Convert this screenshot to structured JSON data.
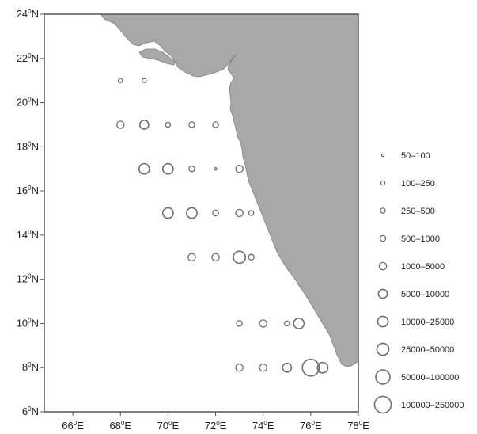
{
  "map": {
    "y_ticks": [
      {
        "label": "24",
        "sup": "0",
        "hemi": "N",
        "lat": 24
      },
      {
        "label": "22",
        "sup": "0",
        "hemi": "N",
        "lat": 22
      },
      {
        "label": "20",
        "sup": "0",
        "hemi": "N",
        "lat": 20
      },
      {
        "label": "18",
        "sup": "0",
        "hemi": "N",
        "lat": 18
      },
      {
        "label": "16",
        "sup": "0",
        "hemi": "N",
        "lat": 16
      },
      {
        "label": "14",
        "sup": "0",
        "hemi": "N",
        "lat": 14
      },
      {
        "label": "12",
        "sup": "0",
        "hemi": "N",
        "lat": 12
      },
      {
        "label": "10",
        "sup": "0",
        "hemi": "N",
        "lat": 10
      },
      {
        "label": "8",
        "sup": "0",
        "hemi": "N",
        "lat": 8
      },
      {
        "label": "6",
        "sup": "0",
        "hemi": "N",
        "lat": 6
      }
    ],
    "x_ticks": [
      {
        "label": "66",
        "sup": "0",
        "hemi": "E",
        "lon": 66
      },
      {
        "label": "68",
        "sup": "0",
        "hemi": "E",
        "lon": 68
      },
      {
        "label": "70",
        "sup": "0",
        "hemi": "E",
        "lon": 70
      },
      {
        "label": "72",
        "sup": "0",
        "hemi": "E",
        "lon": 72
      },
      {
        "label": "74",
        "sup": "0",
        "hemi": "E",
        "lon": 74
      },
      {
        "label": "76",
        "sup": "0",
        "hemi": "E",
        "lon": 76
      },
      {
        "label": "78",
        "sup": "0",
        "hemi": "E",
        "lon": 78
      }
    ],
    "extent": {
      "lon": [
        64.8,
        78
      ],
      "lat": [
        6,
        24
      ]
    },
    "colors": {
      "land": "#a8a8a8",
      "land_stroke": "#808080",
      "marker": "#6e6e6e",
      "frame": "#555555"
    }
  },
  "legend": {
    "items": [
      {
        "label": "50–100",
        "cls": 1
      },
      {
        "label": "100–250",
        "cls": 2
      },
      {
        "label": "250–500",
        "cls": 3
      },
      {
        "label": "500–1000",
        "cls": 4
      },
      {
        "label": "1000–5000",
        "cls": 5
      },
      {
        "label": "5000–10000",
        "cls": 6
      },
      {
        "label": "10000–25000",
        "cls": 7
      },
      {
        "label": "25000–50000",
        "cls": 8
      },
      {
        "label": "50000–100000",
        "cls": 9
      },
      {
        "label": "100000–250000",
        "cls": 10
      }
    ]
  },
  "stations": [
    {
      "lon": 68,
      "lat": 21,
      "cls": 2
    },
    {
      "lon": 69,
      "lat": 21,
      "cls": 2
    },
    {
      "lon": 68,
      "lat": 19,
      "cls": 5
    },
    {
      "lon": 69,
      "lat": 19,
      "cls": 6
    },
    {
      "lon": 70,
      "lat": 19,
      "cls": 3
    },
    {
      "lon": 71,
      "lat": 19,
      "cls": 4
    },
    {
      "lon": 72,
      "lat": 19,
      "cls": 4
    },
    {
      "lon": 69,
      "lat": 17,
      "cls": 7
    },
    {
      "lon": 70,
      "lat": 17,
      "cls": 7
    },
    {
      "lon": 71,
      "lat": 17,
      "cls": 4
    },
    {
      "lon": 72,
      "lat": 17,
      "cls": 1
    },
    {
      "lon": 73,
      "lat": 17,
      "cls": 5
    },
    {
      "lon": 70,
      "lat": 15,
      "cls": 7
    },
    {
      "lon": 71,
      "lat": 15,
      "cls": 7
    },
    {
      "lon": 72,
      "lat": 15,
      "cls": 4
    },
    {
      "lon": 73,
      "lat": 15,
      "cls": 5
    },
    {
      "lon": 73.5,
      "lat": 15,
      "cls": 3
    },
    {
      "lon": 71,
      "lat": 13,
      "cls": 5
    },
    {
      "lon": 72,
      "lat": 13,
      "cls": 5
    },
    {
      "lon": 73,
      "lat": 13,
      "cls": 8
    },
    {
      "lon": 73.5,
      "lat": 13,
      "cls": 4
    },
    {
      "lon": 73,
      "lat": 10,
      "cls": 4
    },
    {
      "lon": 74,
      "lat": 10,
      "cls": 5
    },
    {
      "lon": 75,
      "lat": 10,
      "cls": 3
    },
    {
      "lon": 75.5,
      "lat": 10,
      "cls": 7
    },
    {
      "lon": 73,
      "lat": 8,
      "cls": 5
    },
    {
      "lon": 74,
      "lat": 8,
      "cls": 5
    },
    {
      "lon": 75,
      "lat": 8,
      "cls": 6
    },
    {
      "lon": 76,
      "lat": 8,
      "cls": 10
    },
    {
      "lon": 76.5,
      "lat": 8,
      "cls": 7
    }
  ]
}
